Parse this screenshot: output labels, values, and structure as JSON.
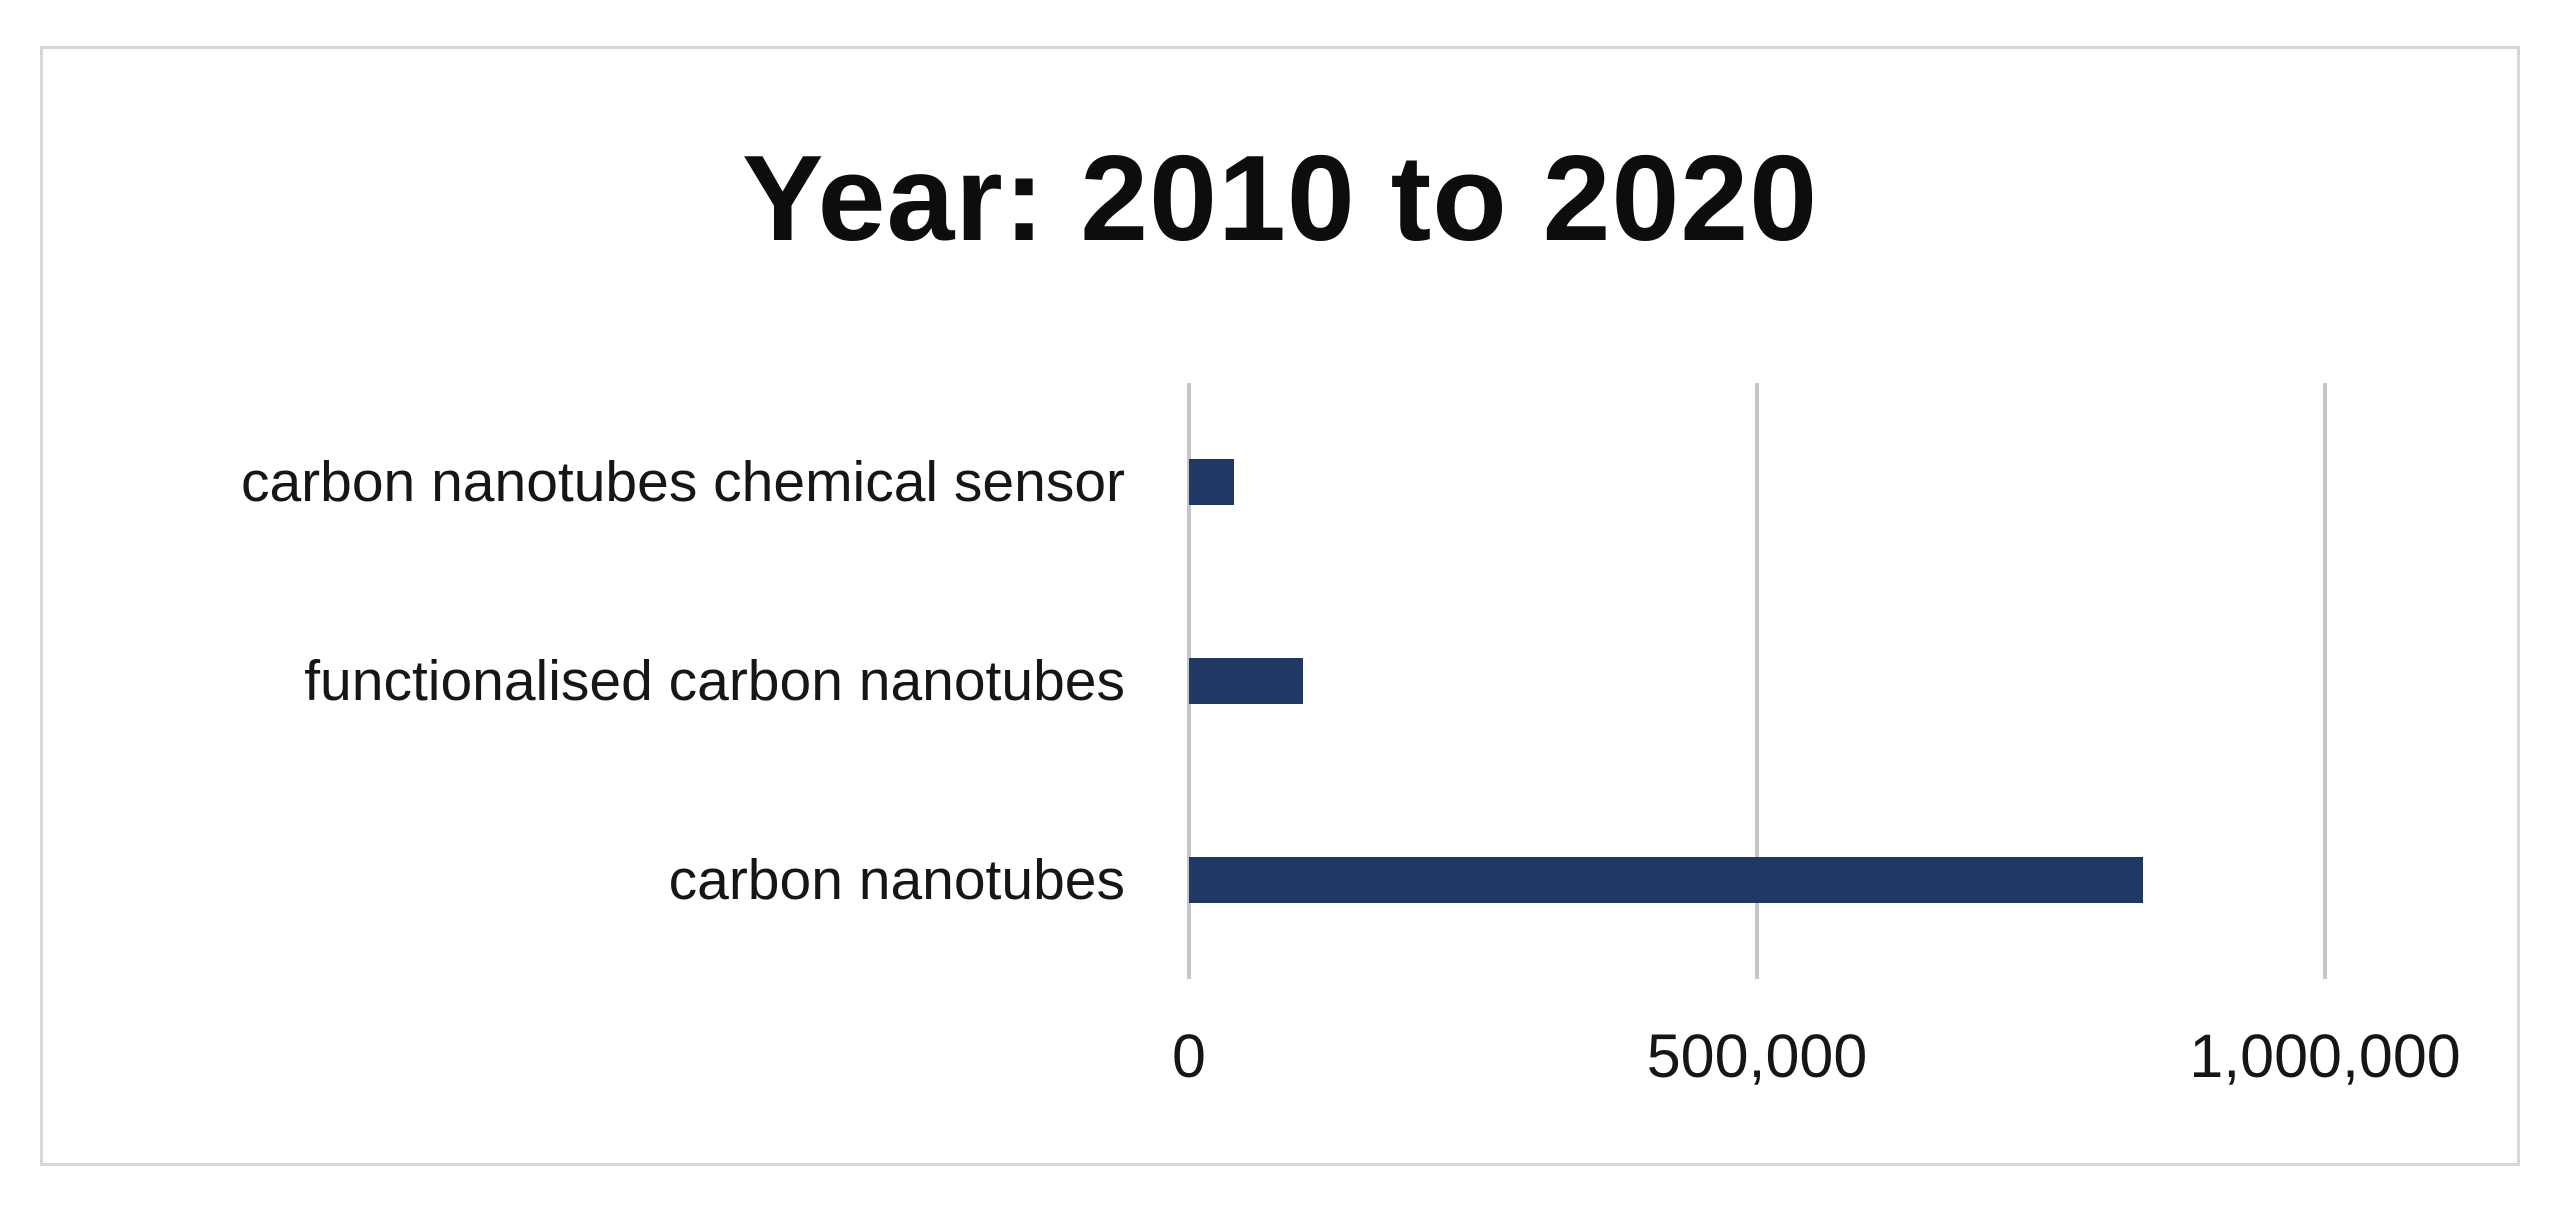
{
  "chart_data": {
    "type": "bar",
    "orientation": "horizontal",
    "title": "Year: 2010 to 2020",
    "categories": [
      "carbon nanotubes chemical sensor",
      "functionalised carbon nanotubes",
      "carbon nanotubes"
    ],
    "values": [
      40000,
      100000,
      840000
    ],
    "x_ticks": [
      {
        "value": 0,
        "label": "0"
      },
      {
        "value": 500000,
        "label": "500,000"
      },
      {
        "value": 1000000,
        "label": "1,000,000"
      }
    ],
    "xlabel": "",
    "ylabel": "",
    "xlim": [
      0,
      1170000
    ],
    "grid": "vertical-only",
    "legend": "none",
    "bar_color": "#1F3864"
  },
  "colors": {
    "bar": "#1F3864",
    "gridline": "#C6C6C6",
    "frame_border": "#D7D7D7",
    "text": "#161616",
    "background": "#FFFFFF"
  }
}
